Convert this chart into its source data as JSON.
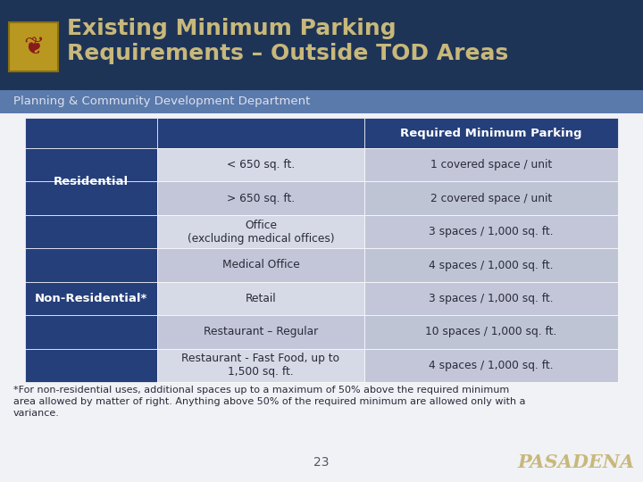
{
  "title_line1": "Existing Minimum Parking",
  "title_line2": "Requirements – Outside TOD Areas",
  "subtitle": "Planning & Community Development Department",
  "page_number": "23",
  "pasadena_text": "PASADENA",
  "footnote": "*For non-residential uses, additional spaces up to a maximum of 50% above the required minimum\narea allowed by matter of right. Anything above 50% of the required minimum are allowed only with a\nvariance.",
  "header_col": "Required Minimum Parking",
  "rows": [
    {
      "category": "Residential",
      "type": "< 650 sq. ft.",
      "requirement": "1 covered space / unit"
    },
    {
      "category": "",
      "type": "> 650 sq. ft.",
      "requirement": "2 covered space / unit"
    },
    {
      "category": "Non-Residential*",
      "type": "Office\n(excluding medical offices)",
      "requirement": "3 spaces / 1,000 sq. ft."
    },
    {
      "category": "",
      "type": "Medical Office",
      "requirement": "4 spaces / 1,000 sq. ft."
    },
    {
      "category": "",
      "type": "Retail",
      "requirement": "3 spaces / 1,000 sq. ft."
    },
    {
      "category": "",
      "type": "Restaurant – Regular",
      "requirement": "10 spaces / 1,000 sq. ft."
    },
    {
      "category": "",
      "type": "Restaurant - Fast Food, up to\n1,500 sq. ft.",
      "requirement": "4 spaces / 1,000 sq. ft."
    }
  ],
  "colors": {
    "dark_navy": "#253f7a",
    "slide_bg_dark": "#1e3457",
    "subtitle_bg": "#5a7aab",
    "light_gray1": "#d6d9e6",
    "light_gray2": "#c2c6d8",
    "light_gray3": "#bfc4d5",
    "light_gray4": "#b5bad0",
    "white": "#ffffff",
    "title_text": "#c8b87a",
    "category_text": "#ffffff",
    "cell_text": "#2a2a3a",
    "footnote_text": "#2a2a3a",
    "pasadena_color": "#c8b87a",
    "page_num_color": "#555566",
    "content_bg": "#f0f2f6",
    "logo_border": "#8a7010",
    "logo_bg": "#b89820"
  }
}
